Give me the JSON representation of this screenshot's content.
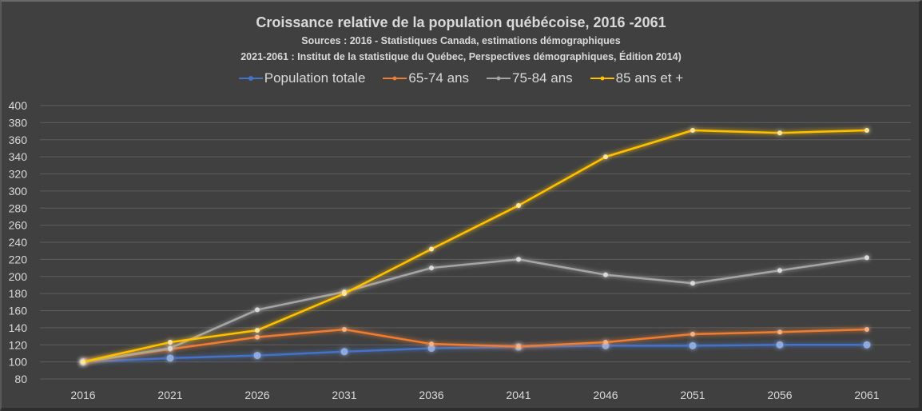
{
  "chart_data": {
    "type": "line",
    "title": "Croissance relative de la population québécoise, 2016  -2061",
    "subtitle_lines": [
      "Sources : 2016 - Statistiques Canada, estimations démographiques",
      "2021-2061 : Institut de la statistique du Québec, Perspectives démographiques, Édition 2014)"
    ],
    "xlabel": "",
    "ylabel": "",
    "categories": [
      "2016",
      "2021",
      "2026",
      "2031",
      "2036",
      "2041",
      "2046",
      "2051",
      "2056",
      "2061"
    ],
    "ylim": [
      80,
      400
    ],
    "yticks": [
      80,
      100,
      120,
      140,
      160,
      180,
      200,
      220,
      240,
      260,
      280,
      300,
      320,
      340,
      360,
      380,
      400
    ],
    "grid": true,
    "legend_position": "top",
    "series": [
      {
        "name": "Population totale",
        "color": "#4472c4",
        "values": [
          100,
          104.5,
          107.5,
          112,
          116,
          117.5,
          119,
          119,
          120,
          120
        ]
      },
      {
        "name": "65-74 ans",
        "color": "#ed7d31",
        "values": [
          100,
          115,
          129,
          138,
          121,
          118,
          123,
          132.5,
          135,
          138
        ]
      },
      {
        "name": "75-84 ans",
        "color": "#a5a5a5",
        "values": [
          100,
          116,
          161,
          182,
          210,
          220,
          202,
          192,
          207,
          222
        ]
      },
      {
        "name": "85 ans et +",
        "color": "#ffc000",
        "values": [
          100,
          123,
          137,
          180,
          232,
          283,
          340,
          371,
          368,
          371
        ]
      }
    ]
  }
}
